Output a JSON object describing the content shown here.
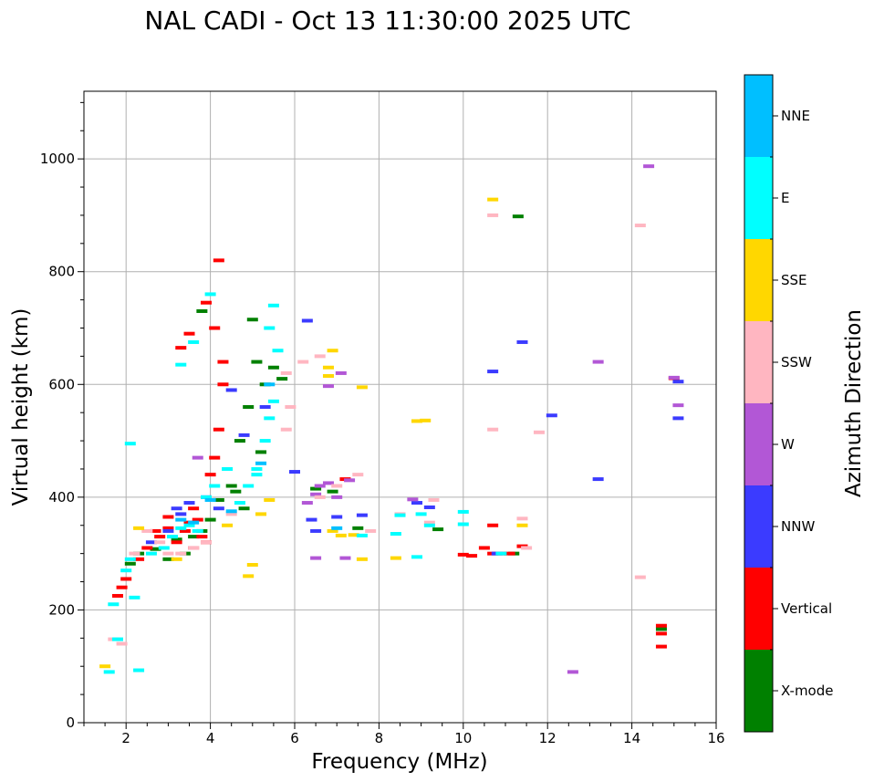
{
  "chart_data": {
    "type": "scatter",
    "title": "NAL CADI - Oct 13 11:30:00 2025 UTC",
    "xlabel": "Frequency (MHz)",
    "ylabel": "Virtual height (km)",
    "xlim": [
      1,
      16
    ],
    "ylim": [
      0,
      1120
    ],
    "xticks": [
      2,
      4,
      6,
      8,
      10,
      12,
      14,
      16
    ],
    "yticks": [
      0,
      200,
      400,
      600,
      800,
      1000
    ],
    "grid": true,
    "colorbar": {
      "label": "Azimuth Direction",
      "categories": [
        "X-mode",
        "Vertical",
        "NNW",
        "W",
        "SSW",
        "SSE",
        "E",
        "NNE"
      ],
      "colors": [
        "#008000",
        "#ff0000",
        "#3b3bff",
        "#b257d6",
        "#ffb6c1",
        "#ffd700",
        "#00ffff",
        "#00bfff"
      ]
    },
    "series": [
      {
        "name": "X-mode",
        "points": [
          [
            2.1,
            282
          ],
          [
            2.3,
            300
          ],
          [
            2.7,
            308
          ],
          [
            3.0,
            290
          ],
          [
            3.2,
            325
          ],
          [
            3.4,
            300
          ],
          [
            3.6,
            330
          ],
          [
            3.8,
            340
          ],
          [
            4.0,
            360
          ],
          [
            4.2,
            395
          ],
          [
            4.5,
            420
          ],
          [
            4.7,
            500
          ],
          [
            4.9,
            560
          ],
          [
            5.1,
            640
          ],
          [
            5.3,
            600
          ],
          [
            5.5,
            630
          ],
          [
            5.7,
            610
          ],
          [
            5.2,
            480
          ],
          [
            4.8,
            380
          ],
          [
            6.5,
            415
          ],
          [
            6.9,
            410
          ],
          [
            7.5,
            345
          ],
          [
            9.4,
            343
          ],
          [
            11.2,
            300
          ],
          [
            11.3,
            898
          ],
          [
            14.7,
            166
          ],
          [
            5.0,
            715
          ],
          [
            3.8,
            730
          ],
          [
            4.6,
            410
          ]
        ]
      },
      {
        "name": "Vertical",
        "points": [
          [
            1.9,
            240
          ],
          [
            2.0,
            255
          ],
          [
            1.8,
            225
          ],
          [
            2.3,
            290
          ],
          [
            2.5,
            310
          ],
          [
            2.8,
            330
          ],
          [
            3.0,
            345
          ],
          [
            3.2,
            320
          ],
          [
            3.4,
            340
          ],
          [
            3.5,
            355
          ],
          [
            3.6,
            380
          ],
          [
            3.7,
            360
          ],
          [
            3.8,
            330
          ],
          [
            3.9,
            320
          ],
          [
            4.0,
            440
          ],
          [
            4.1,
            470
          ],
          [
            4.2,
            520
          ],
          [
            4.3,
            600
          ],
          [
            4.1,
            700
          ],
          [
            3.9,
            745
          ],
          [
            3.5,
            690
          ],
          [
            4.2,
            820
          ],
          [
            4.3,
            640
          ],
          [
            3.3,
            665
          ],
          [
            10.0,
            298
          ],
          [
            10.2,
            296
          ],
          [
            10.5,
            310
          ],
          [
            10.7,
            300
          ],
          [
            10.9,
            300
          ],
          [
            11.1,
            300
          ],
          [
            11.4,
            313
          ],
          [
            10.7,
            350
          ],
          [
            15.0,
            611
          ],
          [
            14.7,
            172
          ],
          [
            14.7,
            158
          ],
          [
            14.7,
            135
          ],
          [
            7.2,
            432
          ],
          [
            3.0,
            365
          ],
          [
            2.7,
            340
          ],
          [
            3.6,
            310
          ]
        ]
      },
      {
        "name": "NNW",
        "points": [
          [
            2.6,
            320
          ],
          [
            3.0,
            340
          ],
          [
            3.3,
            370
          ],
          [
            3.5,
            390
          ],
          [
            3.9,
            400
          ],
          [
            4.2,
            380
          ],
          [
            4.5,
            590
          ],
          [
            4.8,
            510
          ],
          [
            5.3,
            560
          ],
          [
            6.0,
            445
          ],
          [
            6.5,
            340
          ],
          [
            6.4,
            360
          ],
          [
            7.0,
            365
          ],
          [
            7.6,
            368
          ],
          [
            8.9,
            390
          ],
          [
            9.2,
            382
          ],
          [
            10.7,
            623
          ],
          [
            11.4,
            675
          ],
          [
            12.1,
            545
          ],
          [
            13.2,
            432
          ],
          [
            15.1,
            540
          ],
          [
            15.1,
            605
          ],
          [
            6.3,
            713
          ],
          [
            10.8,
            300
          ],
          [
            3.2,
            380
          ]
        ]
      },
      {
        "name": "W",
        "points": [
          [
            6.3,
            390
          ],
          [
            6.5,
            405
          ],
          [
            6.6,
            420
          ],
          [
            6.8,
            425
          ],
          [
            7.0,
            400
          ],
          [
            7.3,
            430
          ],
          [
            7.1,
            620
          ],
          [
            6.8,
            597
          ],
          [
            8.8,
            396
          ],
          [
            13.2,
            640
          ],
          [
            14.4,
            987
          ],
          [
            15.1,
            563
          ],
          [
            15.0,
            612
          ],
          [
            12.6,
            90
          ],
          [
            6.5,
            292
          ],
          [
            3.7,
            470
          ],
          [
            7.2,
            292
          ]
        ]
      },
      {
        "name": "SSW",
        "points": [
          [
            1.7,
            148
          ],
          [
            1.9,
            140
          ],
          [
            2.2,
            300
          ],
          [
            2.5,
            340
          ],
          [
            2.8,
            320
          ],
          [
            3.0,
            300
          ],
          [
            3.3,
            300
          ],
          [
            3.6,
            310
          ],
          [
            3.9,
            320
          ],
          [
            4.5,
            370
          ],
          [
            5.8,
            520
          ],
          [
            5.9,
            560
          ],
          [
            5.8,
            620
          ],
          [
            6.6,
            650
          ],
          [
            6.6,
            400
          ],
          [
            7.0,
            420
          ],
          [
            7.5,
            440
          ],
          [
            7.8,
            340
          ],
          [
            8.5,
            370
          ],
          [
            9.3,
            395
          ],
          [
            9.2,
            355
          ],
          [
            10.7,
            520
          ],
          [
            10.7,
            900
          ],
          [
            11.4,
            362
          ],
          [
            11.5,
            310
          ],
          [
            11.8,
            515
          ],
          [
            14.2,
            882
          ],
          [
            14.2,
            258
          ],
          [
            6.2,
            640
          ]
        ]
      },
      {
        "name": "SSE",
        "points": [
          [
            1.5,
            100
          ],
          [
            2.3,
            345
          ],
          [
            3.2,
            290
          ],
          [
            4.4,
            350
          ],
          [
            4.9,
            260
          ],
          [
            5.0,
            280
          ],
          [
            5.2,
            370
          ],
          [
            5.4,
            395
          ],
          [
            6.9,
            660
          ],
          [
            6.8,
            630
          ],
          [
            6.8,
            615
          ],
          [
            7.1,
            332
          ],
          [
            7.4,
            333
          ],
          [
            7.6,
            290
          ],
          [
            7.6,
            595
          ],
          [
            8.4,
            292
          ],
          [
            8.9,
            535
          ],
          [
            9.1,
            536
          ],
          [
            10.7,
            928
          ],
          [
            11.4,
            350
          ],
          [
            6.9,
            340
          ]
        ]
      },
      {
        "name": "E",
        "points": [
          [
            1.6,
            90
          ],
          [
            1.7,
            210
          ],
          [
            1.8,
            148
          ],
          [
            2.0,
            270
          ],
          [
            2.1,
            290
          ],
          [
            2.3,
            93
          ],
          [
            2.6,
            300
          ],
          [
            2.9,
            310
          ],
          [
            3.1,
            330
          ],
          [
            3.3,
            345
          ],
          [
            3.5,
            350
          ],
          [
            3.7,
            340
          ],
          [
            3.9,
            400
          ],
          [
            4.0,
            760
          ],
          [
            4.1,
            420
          ],
          [
            4.4,
            450
          ],
          [
            4.7,
            390
          ],
          [
            4.9,
            420
          ],
          [
            5.1,
            450
          ],
          [
            5.3,
            500
          ],
          [
            5.4,
            540
          ],
          [
            5.5,
            570
          ],
          [
            5.6,
            660
          ],
          [
            5.4,
            700
          ],
          [
            5.5,
            740
          ],
          [
            3.6,
            675
          ],
          [
            3.3,
            635
          ],
          [
            7.6,
            332
          ],
          [
            8.4,
            335
          ],
          [
            8.5,
            368
          ],
          [
            8.9,
            294
          ],
          [
            9.0,
            370
          ],
          [
            9.2,
            350
          ],
          [
            10.0,
            374
          ],
          [
            10.0,
            352
          ],
          [
            10.9,
            300
          ],
          [
            2.1,
            495
          ],
          [
            2.2,
            222
          ],
          [
            5.1,
            440
          ]
        ]
      },
      {
        "name": "NNE",
        "points": [
          [
            3.3,
            360
          ],
          [
            3.6,
            355
          ],
          [
            4.0,
            395
          ],
          [
            4.5,
            375
          ],
          [
            5.2,
            460
          ],
          [
            5.4,
            600
          ],
          [
            7.0,
            345
          ]
        ]
      }
    ]
  }
}
